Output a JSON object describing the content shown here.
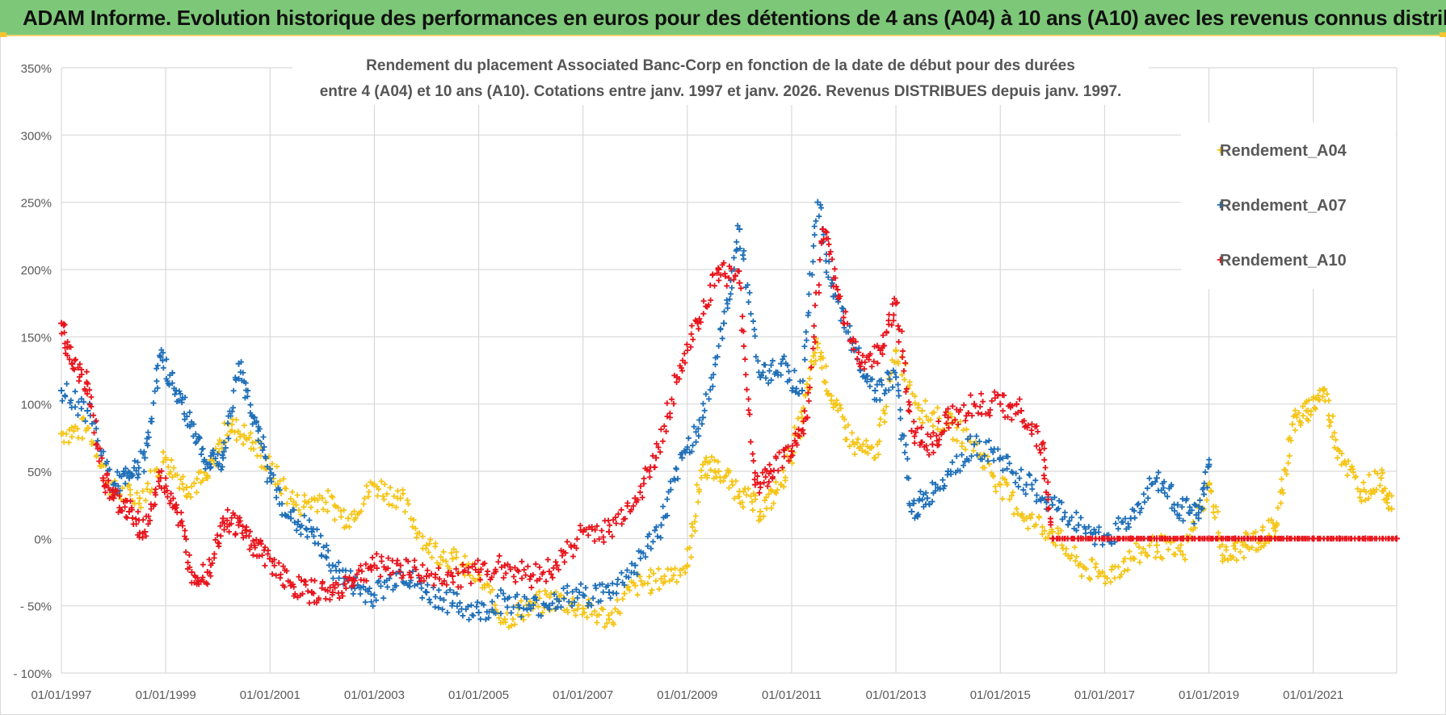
{
  "header": {
    "title": "ADAM Informe. Evolution historique des performances en euros pour des détentions de 4 ans (A04) à 10 ans (A10) avec les revenus connus distribués"
  },
  "chart_data": {
    "type": "scatter",
    "title_line1": "Rendement du placement Associated Banc-Corp en fonction de la date de début pour des durées",
    "title_line2": "entre 4 (A04) et 10 ans (A10).  Cotations entre janv. 1997 et janv. 2026. Revenus DISTRIBUES  depuis janv. 1997.",
    "xlabel": "",
    "ylabel": "",
    "x_start_year": 1997,
    "x_end_year": 2022.6,
    "ylim": [
      -100,
      350
    ],
    "y_ticks": [
      -100,
      -50,
      0,
      50,
      100,
      150,
      200,
      250,
      300,
      350
    ],
    "y_tick_labels": [
      "- 100%",
      "- 50%",
      "0%",
      "50%",
      "100%",
      "150%",
      "200%",
      "250%",
      "300%",
      "350%"
    ],
    "x_ticks": [
      1997,
      1999,
      2001,
      2003,
      2005,
      2007,
      2009,
      2011,
      2013,
      2015,
      2017,
      2019,
      2021
    ],
    "x_tick_labels": [
      "01/01/1997",
      "01/01/1999",
      "01/01/2001",
      "01/01/2003",
      "01/01/2005",
      "01/01/2007",
      "01/01/2009",
      "01/01/2011",
      "01/01/2013",
      "01/01/2015",
      "01/01/2017",
      "01/01/2019",
      "01/01/2021"
    ],
    "grid": true,
    "legend_position": "top-right",
    "series": [
      {
        "name": "Rendement_A04",
        "color": "#f5c518",
        "x": [
          1997.0,
          1997.5,
          1998.0,
          1998.5,
          1999.0,
          1999.4,
          1999.8,
          2000.2,
          2000.6,
          2001.0,
          2001.5,
          2002.0,
          2002.5,
          2003.0,
          2003.5,
          2004.0,
          2004.5,
          2005.0,
          2005.5,
          2006.0,
          2006.5,
          2007.0,
          2007.5,
          2008.0,
          2008.5,
          2009.0,
          2009.3,
          2009.6,
          2010.0,
          2010.4,
          2010.8,
          2011.2,
          2011.5,
          2011.8,
          2012.2,
          2012.6,
          2013.0,
          2013.5,
          2014.0,
          2014.5,
          2015.0,
          2015.5,
          2016.0,
          2016.5,
          2017.0,
          2017.5,
          2018.0,
          2018.5,
          2019.0,
          2019.3,
          2019.7,
          2020.0,
          2020.3,
          2020.6,
          2020.9,
          2021.2,
          2021.5,
          2021.9,
          2022.3,
          2022.5
        ],
        "values": [
          78,
          82,
          35,
          30,
          60,
          38,
          45,
          85,
          75,
          52,
          25,
          30,
          15,
          40,
          30,
          -5,
          -15,
          -30,
          -60,
          -50,
          -45,
          -52,
          -60,
          -35,
          -30,
          -20,
          55,
          50,
          35,
          20,
          40,
          90,
          145,
          100,
          70,
          60,
          140,
          95,
          85,
          70,
          40,
          15,
          5,
          -20,
          -28,
          -15,
          -5,
          -12,
          40,
          -15,
          -5,
          0,
          10,
          85,
          95,
          110,
          65,
          35,
          45,
          22
        ]
      },
      {
        "name": "Rendement_A07",
        "color": "#1f6fb8",
        "x": [
          1997.0,
          1997.5,
          1998.0,
          1998.3,
          1998.6,
          1998.9,
          1999.2,
          1999.5,
          1999.8,
          2000.1,
          2000.4,
          2000.7,
          2001.0,
          2001.4,
          2001.8,
          2002.2,
          2002.6,
          2003.0,
          2003.5,
          2004.0,
          2004.5,
          2005.0,
          2005.5,
          2006.0,
          2006.5,
          2007.0,
          2007.5,
          2008.0,
          2008.5,
          2008.9,
          2009.3,
          2009.7,
          2010.0,
          2010.4,
          2010.8,
          2011.2,
          2011.5,
          2011.8,
          2012.2,
          2012.6,
          2013.0,
          2013.3,
          2013.6,
          2014.0,
          2014.5,
          2015.0,
          2015.5,
          2016.0,
          2016.5,
          2017.0,
          2017.5,
          2018.0,
          2018.4,
          2018.8,
          2019.0
        ],
        "values": [
          110,
          95,
          40,
          45,
          60,
          135,
          110,
          85,
          55,
          60,
          130,
          90,
          45,
          15,
          5,
          -20,
          -35,
          -42,
          -25,
          -40,
          -48,
          -55,
          -45,
          -52,
          -45,
          -42,
          -40,
          -20,
          10,
          60,
          90,
          160,
          230,
          120,
          130,
          110,
          250,
          180,
          140,
          110,
          120,
          20,
          30,
          50,
          70,
          60,
          40,
          25,
          10,
          0,
          15,
          45,
          25,
          15,
          55
        ]
      },
      {
        "name": "Rendement_A10",
        "color": "#e8141c",
        "x": [
          1997.0,
          1997.2,
          1997.5,
          1997.8,
          1998.0,
          1998.3,
          1998.6,
          1998.9,
          1999.2,
          1999.5,
          1999.8,
          2000.1,
          2000.4,
          2000.7,
          2001.0,
          2001.4,
          2001.8,
          2002.2,
          2002.6,
          2003.0,
          2003.5,
          2004.0,
          2004.5,
          2005.0,
          2005.5,
          2006.0,
          2006.5,
          2007.0,
          2007.5,
          2008.0,
          2008.4,
          2008.8,
          2009.2,
          2009.6,
          2010.0,
          2010.3,
          2010.6,
          2011.0,
          2011.3,
          2011.6,
          2011.9,
          2012.3,
          2012.7,
          2013.0,
          2013.3,
          2013.7,
          2014.0,
          2014.5,
          2015.0,
          2015.4,
          2015.8,
          2016.0,
          2016.5,
          2017.0,
          2017.5,
          2018.0,
          2018.5,
          2019.0,
          2019.5,
          2020.0,
          2020.5,
          2021.0,
          2021.5,
          2022.0,
          2022.6
        ],
        "values": [
          160,
          130,
          115,
          45,
          30,
          20,
          5,
          45,
          25,
          -25,
          -25,
          15,
          10,
          -5,
          -15,
          -35,
          -40,
          -40,
          -30,
          -20,
          -20,
          -28,
          -28,
          -25,
          -20,
          -28,
          -20,
          5,
          5,
          30,
          60,
          120,
          160,
          200,
          190,
          40,
          50,
          65,
          90,
          230,
          180,
          130,
          140,
          175,
          80,
          70,
          90,
          100,
          100,
          95,
          70,
          0,
          0,
          0,
          0,
          0,
          0,
          0,
          0,
          0,
          0,
          0,
          0,
          0,
          0
        ]
      }
    ]
  }
}
